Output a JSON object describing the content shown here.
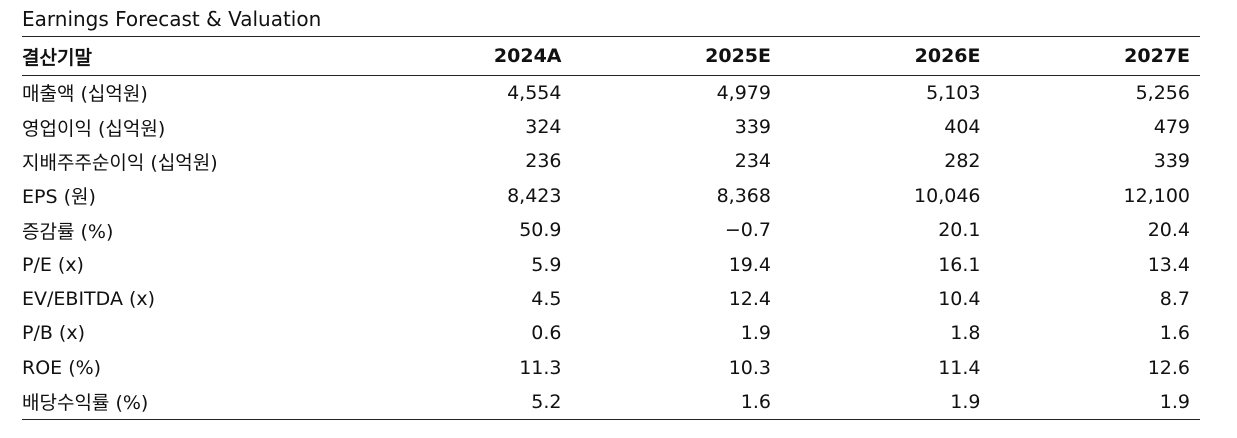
{
  "title": "Earnings Forecast & Valuation",
  "table": {
    "header_label": "결산기말",
    "years": [
      "2024A",
      "2025E",
      "2026E",
      "2027E"
    ],
    "rows": [
      {
        "label": "매출액 (십억원)",
        "values": [
          "4,554",
          "4,979",
          "5,103",
          "5,256"
        ]
      },
      {
        "label": "영업이익 (십억원)",
        "values": [
          "324",
          "339",
          "404",
          "479"
        ]
      },
      {
        "label": "지배주주순이익 (십억원)",
        "values": [
          "236",
          "234",
          "282",
          "339"
        ]
      },
      {
        "label": "EPS (원)",
        "values": [
          "8,423",
          "8,368",
          "10,046",
          "12,100"
        ]
      },
      {
        "label": "증감률 (%)",
        "values": [
          "50.9",
          "−0.7",
          "20.1",
          "20.4"
        ]
      },
      {
        "label": "P/E (x)",
        "values": [
          "5.9",
          "19.4",
          "16.1",
          "13.4"
        ]
      },
      {
        "label": "EV/EBITDA (x)",
        "values": [
          "4.5",
          "12.4",
          "10.4",
          "8.7"
        ]
      },
      {
        "label": "P/B (x)",
        "values": [
          "0.6",
          "1.9",
          "1.8",
          "1.6"
        ]
      },
      {
        "label": "ROE (%)",
        "values": [
          "11.3",
          "10.3",
          "11.4",
          "12.6"
        ]
      },
      {
        "label": "배당수익률 (%)",
        "values": [
          "5.2",
          "1.6",
          "1.9",
          "1.9"
        ]
      }
    ]
  }
}
